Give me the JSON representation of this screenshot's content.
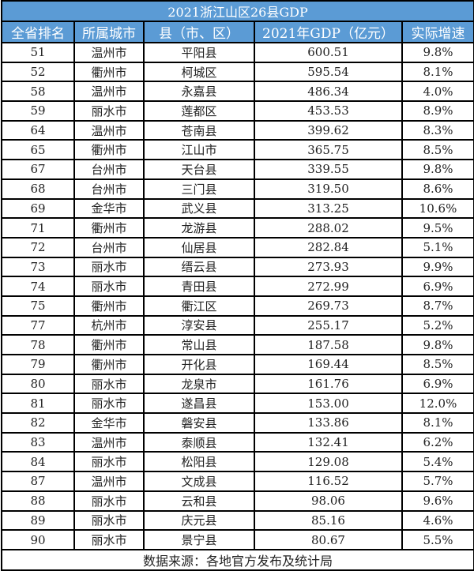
{
  "title": "2021浙江山区26县GDP",
  "headers": [
    "全省排名",
    "所属城市",
    "县（市、区）",
    "2021年GDP（亿元）",
    "实际增速"
  ],
  "rows": [
    [
      "51",
      "温州市",
      "平阳县",
      "600.51",
      "9.8%"
    ],
    [
      "52",
      "衢州市",
      "柯城区",
      "595.54",
      "8.1%"
    ],
    [
      "58",
      "温州市",
      "永嘉县",
      "486.34",
      "4.0%"
    ],
    [
      "59",
      "丽水市",
      "莲都区",
      "453.53",
      "8.9%"
    ],
    [
      "64",
      "温州市",
      "苍南县",
      "399.62",
      "8.3%"
    ],
    [
      "65",
      "衢州市",
      "江山市",
      "365.75",
      "8.5%"
    ],
    [
      "67",
      "台州市",
      "天台县",
      "339.55",
      "9.8%"
    ],
    [
      "68",
      "台州市",
      "三门县",
      "319.50",
      "8.6%"
    ],
    [
      "69",
      "金华市",
      "武义县",
      "313.25",
      "10.6%"
    ],
    [
      "71",
      "衢州市",
      "龙游县",
      "288.02",
      "9.5%"
    ],
    [
      "72",
      "台州市",
      "仙居县",
      "282.84",
      "5.1%"
    ],
    [
      "73",
      "丽水市",
      "缙云县",
      "273.93",
      "9.9%"
    ],
    [
      "74",
      "丽水市",
      "青田县",
      "272.99",
      "6.9%"
    ],
    [
      "75",
      "衢州市",
      "衢江区",
      "269.73",
      "8.7%"
    ],
    [
      "77",
      "杭州市",
      "淳安县",
      "255.17",
      "5.2%"
    ],
    [
      "78",
      "衢州市",
      "常山县",
      "187.58",
      "9.8%"
    ],
    [
      "79",
      "衢州市",
      "开化县",
      "169.44",
      "8.5%"
    ],
    [
      "80",
      "丽水市",
      "龙泉市",
      "161.76",
      "6.9%"
    ],
    [
      "81",
      "丽水市",
      "遂昌县",
      "153.00",
      "12.0%"
    ],
    [
      "82",
      "金华市",
      "磐安县",
      "133.86",
      "8.1%"
    ],
    [
      "83",
      "温州市",
      "泰顺县",
      "132.41",
      "6.2%"
    ],
    [
      "84",
      "丽水市",
      "松阳县",
      "129.08",
      "5.4%"
    ],
    [
      "87",
      "温州市",
      "文成县",
      "116.52",
      "5.7%"
    ],
    [
      "88",
      "丽水市",
      "云和县",
      "98.06",
      "9.6%"
    ],
    [
      "89",
      "丽水市",
      "庆元县",
      "85.16",
      "4.6%"
    ],
    [
      "90",
      "丽水市",
      "景宁县",
      "80.67",
      "5.5%"
    ]
  ],
  "footer": "数据来源：各地官方发布及统计局",
  "colors": {
    "header_bg": "#5b9bd5",
    "header_text": "#ffffff"
  }
}
